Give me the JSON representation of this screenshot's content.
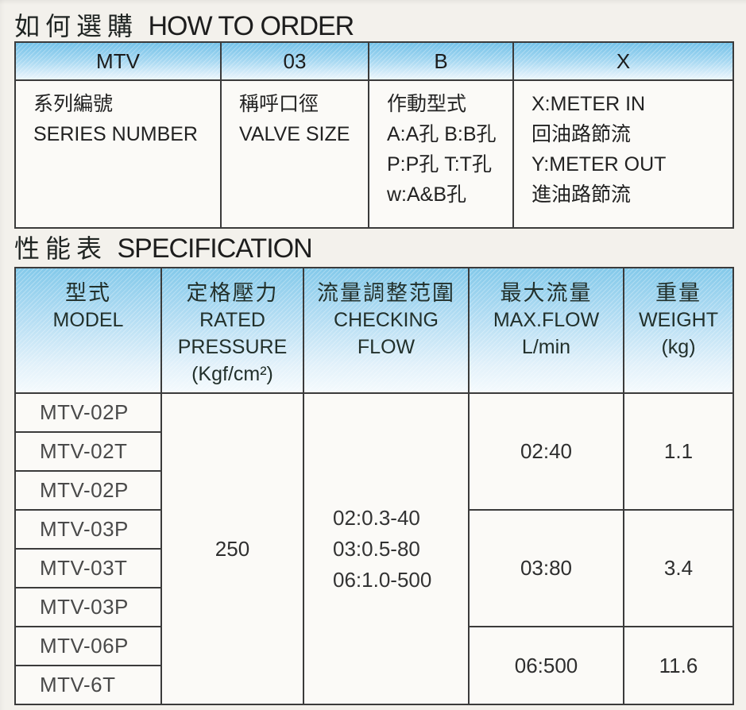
{
  "page": {
    "title1_zh": "如何選購",
    "title1_en": "HOW TO ORDER",
    "title2_zh": "性能表",
    "title2_en": "SPECIFICATION"
  },
  "colors": {
    "header_blue_top": "#74c2e8",
    "header_blue_bottom": "#eaf6fc",
    "border": "#3b3b3b",
    "paper": "#f3f1ec",
    "cell_bg": "#fbfaf7"
  },
  "order_table": {
    "headers": [
      "MTV",
      "03",
      "B",
      "X"
    ],
    "cells": [
      {
        "lines": [
          "系列編號",
          "SERIES NUMBER"
        ]
      },
      {
        "lines": [
          "稱呼口徑",
          "VALVE SIZE"
        ]
      },
      {
        "lines": [
          "作動型式",
          "A:A孔 B:B孔",
          "P:P孔 T:T孔",
          "w:A&B孔"
        ]
      },
      {
        "lines": [
          "X:METER IN",
          "回油路節流",
          "Y:METER OUT",
          "進油路節流"
        ]
      }
    ]
  },
  "spec_table": {
    "headers": [
      {
        "lines": [
          "型式",
          "MODEL"
        ]
      },
      {
        "lines": [
          "定格壓力",
          "RATED",
          "PRESSURE",
          "(Kgf/cm²)"
        ]
      },
      {
        "lines": [
          "流量調整范圍",
          "CHECKING",
          "FLOW"
        ]
      },
      {
        "lines": [
          "最大流量",
          "MAX.FLOW",
          "L/min"
        ]
      },
      {
        "lines": [
          "重量",
          "WEIGHT",
          "(kg)"
        ]
      }
    ],
    "models": [
      "MTV-02P",
      "MTV-02T",
      "MTV-02P",
      "MTV-03P",
      "MTV-03T",
      "MTV-03P",
      "MTV-06P",
      "MTV-6T"
    ],
    "rated_pressure": "250",
    "checking_flow": {
      "lines": [
        "02:0.3-40",
        "03:0.5-80",
        "06:1.0-500"
      ]
    },
    "max_flow": [
      "02:40",
      "03:80",
      "06:500"
    ],
    "weight": [
      "1.1",
      "3.4",
      "11.6"
    ]
  }
}
